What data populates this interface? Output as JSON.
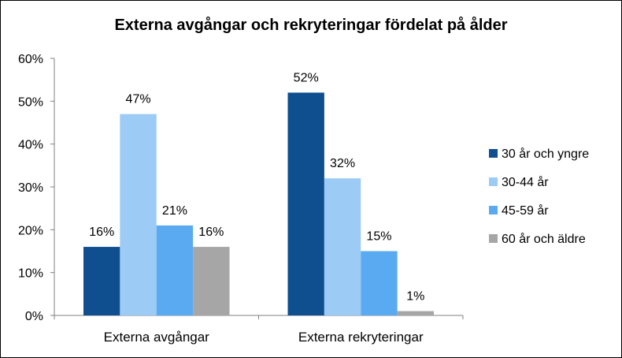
{
  "chart_data": {
    "type": "bar",
    "title": "Externa avgångar och rekryteringar fördelat på ålder",
    "xlabel": "",
    "ylabel": "",
    "ylim": [
      0,
      0.6
    ],
    "yticks": [
      0,
      0.1,
      0.2,
      0.3,
      0.4,
      0.5,
      0.6
    ],
    "ytick_labels": [
      "0%",
      "10%",
      "20%",
      "30%",
      "40%",
      "50%",
      "60%"
    ],
    "categories": [
      "Externa avgångar",
      "Externa rekryteringar"
    ],
    "series": [
      {
        "name": "30 år och yngre",
        "color": "#0f4f8f",
        "values": [
          0.16,
          0.52
        ],
        "labels": [
          "16%",
          "52%"
        ]
      },
      {
        "name": "30-44 år",
        "color": "#9ccbf5",
        "values": [
          0.47,
          0.32
        ],
        "labels": [
          "47%",
          "32%"
        ]
      },
      {
        "name": "45-59 år",
        "color": "#5aaaf2",
        "values": [
          0.21,
          0.15
        ],
        "labels": [
          "21%",
          "15%"
        ]
      },
      {
        "name": "60 år och äldre",
        "color": "#a6a6a6",
        "values": [
          0.16,
          0.01
        ],
        "labels": [
          "16%",
          "1%"
        ]
      }
    ],
    "grid": false,
    "legend_position": "right"
  }
}
